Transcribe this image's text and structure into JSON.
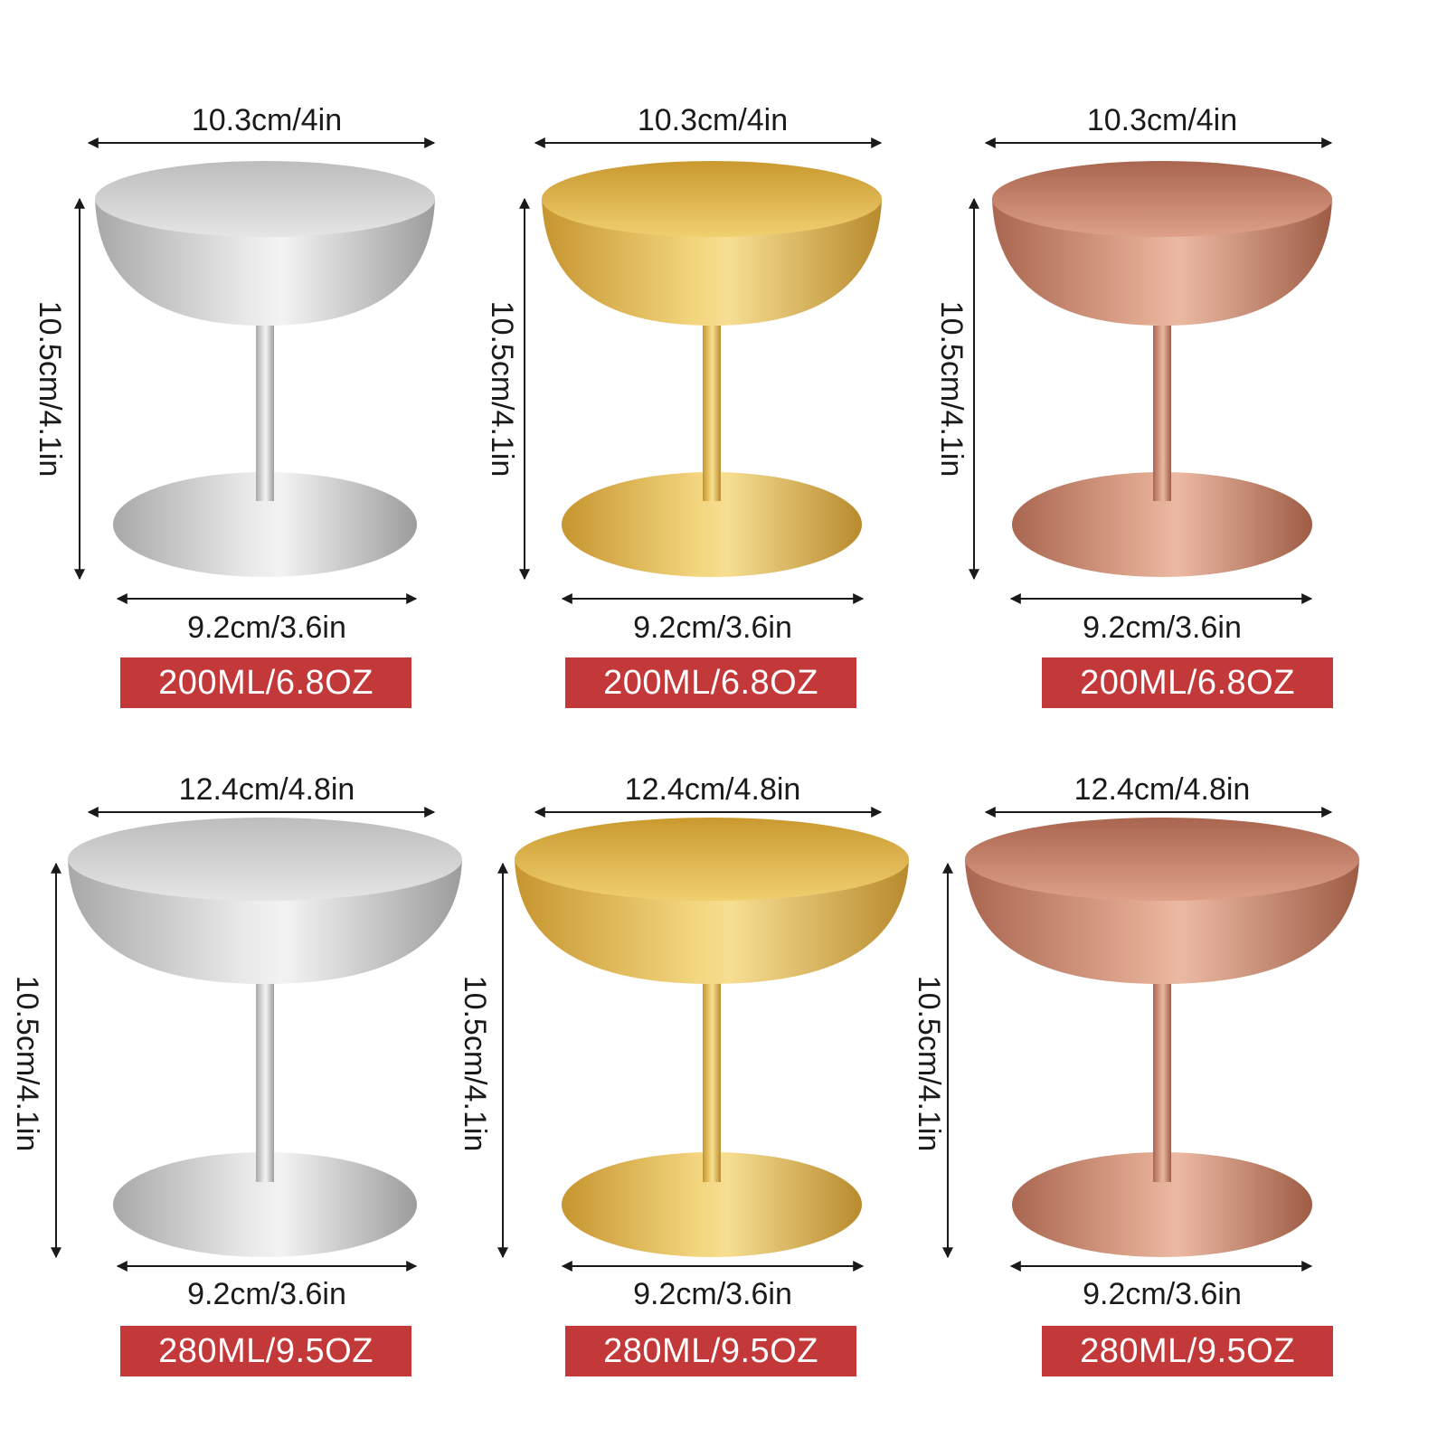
{
  "row1": {
    "top_width": "10.3cm/4in",
    "height": "10.5cm/4.1in",
    "base_width": "9.2cm/3.6in",
    "capacity": "200ML/6.8OZ"
  },
  "row2": {
    "top_width": "12.4cm/4.8in",
    "height": "10.5cm/4.1in",
    "base_width": "9.2cm/3.6in",
    "capacity": "280ML/9.5OZ"
  },
  "finishes": [
    {
      "name": "silver",
      "light": "#e8e8e8",
      "mid": "#c4c4c4",
      "dark": "#9a9a9a",
      "inner": "#d6d6d6"
    },
    {
      "name": "gold",
      "light": "#f3da8a",
      "mid": "#d9ad48",
      "dark": "#b98a2c",
      "inner": "#e8c463"
    },
    {
      "name": "copper",
      "light": "#e8b39c",
      "mid": "#c98467",
      "dark": "#9f5d45",
      "inner": "#d79a80"
    }
  ]
}
